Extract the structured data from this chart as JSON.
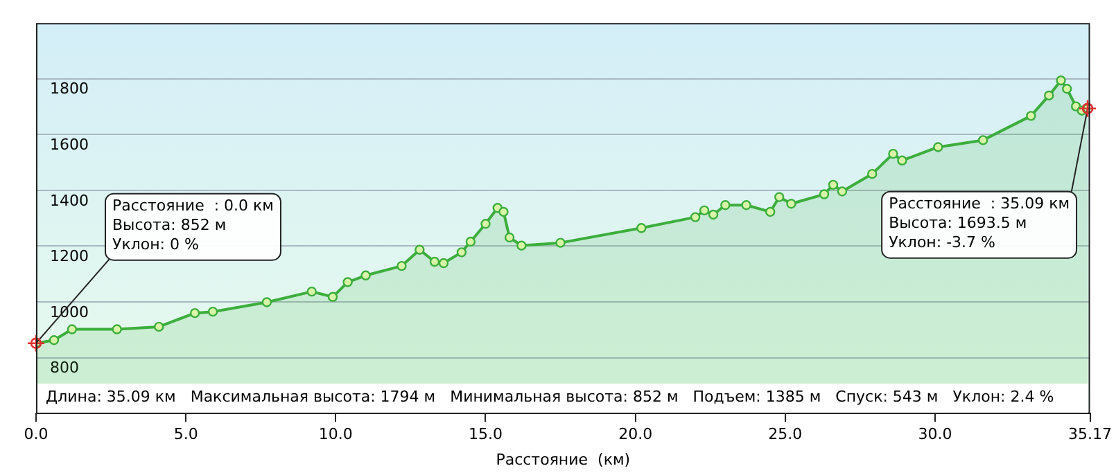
{
  "chart_data": {
    "type": "area",
    "xlabel": "Расстояние  (км)",
    "x": [
      0,
      0.6,
      1.2,
      2.7,
      4.1,
      5.3,
      5.9,
      7.7,
      9.2,
      9.9,
      10.4,
      11.0,
      12.2,
      12.8,
      13.3,
      13.6,
      14.2,
      14.5,
      15.0,
      15.4,
      15.6,
      15.8,
      16.2,
      17.5,
      20.2,
      22.0,
      22.3,
      22.6,
      23.0,
      23.7,
      24.5,
      24.8,
      25.2,
      26.3,
      26.6,
      26.9,
      27.9,
      28.6,
      28.9,
      30.1,
      31.6,
      33.2,
      33.8,
      34.2,
      34.4,
      34.7,
      34.9,
      35.09
    ],
    "series": [
      {
        "color": "#3cae3c",
        "values": [
          852,
          863,
          902,
          902,
          911,
          960,
          965,
          999,
          1037,
          1018,
          1071,
          1095,
          1129,
          1187,
          1144,
          1139,
          1178,
          1216,
          1280,
          1337,
          1323,
          1231,
          1202,
          1212,
          1265,
          1304,
          1328,
          1313,
          1347,
          1347,
          1323,
          1376,
          1352,
          1386,
          1420,
          1396,
          1459,
          1531,
          1507,
          1555,
          1580,
          1667,
          1740,
          1794,
          1764,
          1701,
          1686,
          1693.5
        ]
      }
    ],
    "xlim": [
      0,
      35.17
    ],
    "xticks": [
      {
        "value": 0,
        "label": "0.0"
      },
      {
        "value": 5,
        "label": "5.0"
      },
      {
        "value": 10,
        "label": "10.0"
      },
      {
        "value": 15,
        "label": "15.0"
      },
      {
        "value": 20,
        "label": "20.0"
      },
      {
        "value": 25,
        "label": "25.0"
      },
      {
        "value": 30,
        "label": "30.0"
      },
      35.17
    ],
    "ylim": [
      600,
      2000
    ],
    "yticks": [
      800,
      1000,
      1200,
      1400,
      1600,
      1800
    ],
    "grid": "y",
    "marker": "circle",
    "legend": false,
    "annotations": [
      {
        "text": "Расстояние  : 0.0 км\nВысота: 852 м\nУклон: 0 %",
        "x": 0,
        "y": 852
      },
      {
        "text": "Расстояние  : 35.09 км\nВысота: 1693.5 м\nУклон: -3.7 %",
        "x": 35.09,
        "y": 1693.5
      },
      "Длина: 35.09 км   Максимальная высота: 1794 м   Минимальная высота: 852 м   Подъем: 1385 м   Спуск: 543 м   Уклон: 2.4 %"
    ]
  }
}
